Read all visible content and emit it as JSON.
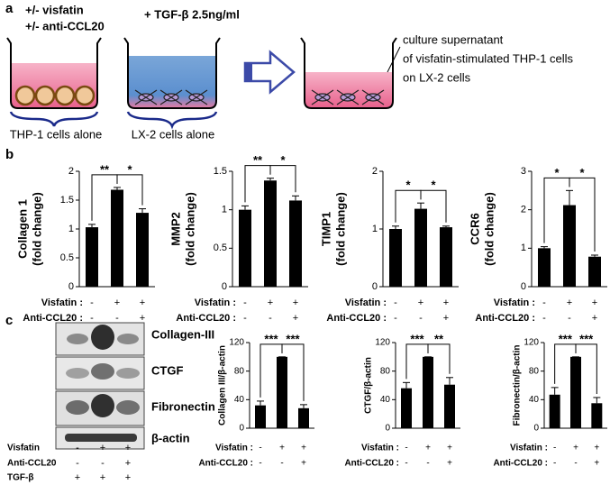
{
  "panel_labels": [
    "a",
    "b",
    "c"
  ],
  "panel_a": {
    "treatments": [
      "+/- visfatin",
      "+/- anti-CCL20"
    ],
    "tgf": "+ TGF-β 2.5ng/ml",
    "note": [
      "culture supernatant",
      "of visfatin-stimulated THP-1 cells",
      "on LX-2 cells"
    ],
    "wells": [
      "THP-1 cells alone",
      "LX-2 cells alone"
    ]
  },
  "blot": {
    "proteins": [
      "Collagen-III",
      "CTGF",
      "Fibronectin",
      "β-actin"
    ],
    "treatments": [
      {
        "label": "Visfatin",
        "signs": [
          "-",
          "+",
          "+"
        ]
      },
      {
        "label": "Anti-CCL20",
        "signs": [
          "-",
          "-",
          "+"
        ]
      },
      {
        "label": "TGF-β",
        "signs": [
          "+",
          "+",
          "+"
        ]
      }
    ]
  },
  "chart_data": [
    {
      "type": "bar",
      "ylabel": [
        "Collagen 1",
        "(fold change)"
      ],
      "values": [
        1.03,
        1.68,
        1.28
      ],
      "errors": [
        0.05,
        0.04,
        0.07
      ],
      "color": "#000000",
      "ylim": [
        0,
        2
      ],
      "yticks": [
        0,
        0.5,
        1,
        1.5,
        2
      ],
      "significance": [
        "**",
        "*"
      ],
      "treatments": [
        {
          "label": "Visfatin :",
          "signs": [
            "-",
            "+",
            "+"
          ]
        },
        {
          "label": "Anti-CCL20 :",
          "signs": [
            "-",
            "-",
            "+"
          ]
        }
      ]
    },
    {
      "type": "bar",
      "ylabel": [
        "MMP2",
        "(fold change)"
      ],
      "values": [
        1.0,
        1.38,
        1.12
      ],
      "errors": [
        0.05,
        0.03,
        0.06
      ],
      "color": "#000000",
      "ylim": [
        0,
        1.5
      ],
      "yticks": [
        0,
        0.5,
        1,
        1.5
      ],
      "significance": [
        "**",
        "*"
      ],
      "treatments": [
        {
          "label": "Visfatin :",
          "signs": [
            "-",
            "+",
            "+"
          ]
        },
        {
          "label": "Anti-CCL20 :",
          "signs": [
            "-",
            "-",
            "+"
          ]
        }
      ]
    },
    {
      "type": "bar",
      "ylabel": [
        "TIMP1",
        "(fold change)"
      ],
      "values": [
        1.0,
        1.35,
        1.03
      ],
      "errors": [
        0.05,
        0.1,
        0.02
      ],
      "color": "#000000",
      "ylim": [
        0,
        2
      ],
      "yticks": [
        0,
        1,
        2
      ],
      "significance": [
        "*",
        "*"
      ],
      "treatments": [
        {
          "label": "Visfatin :",
          "signs": [
            "-",
            "+",
            "+"
          ]
        },
        {
          "label": "Anti-CCL20 :",
          "signs": [
            "-",
            "-",
            "+"
          ]
        }
      ]
    },
    {
      "type": "bar",
      "ylabel": [
        "CCR6",
        "(fold change)"
      ],
      "values": [
        1.0,
        2.12,
        0.78
      ],
      "errors": [
        0.04,
        0.38,
        0.04
      ],
      "color": "#000000",
      "ylim": [
        0,
        3
      ],
      "yticks": [
        0,
        1,
        2,
        3
      ],
      "significance": [
        "*",
        "*"
      ],
      "treatments": [
        {
          "label": "Visfatin :",
          "signs": [
            "-",
            "+",
            "+"
          ]
        },
        {
          "label": "Anti-CCL20 :",
          "signs": [
            "-",
            "-",
            "+"
          ]
        }
      ]
    },
    {
      "type": "bar",
      "ylabel": [
        "Collagen III/β-actin"
      ],
      "values": [
        32,
        100,
        28
      ],
      "errors": [
        6,
        0,
        5
      ],
      "color": "#000000",
      "ylim": [
        0,
        120
      ],
      "yticks": [
        0,
        40,
        80,
        120
      ],
      "significance": [
        "***",
        "***"
      ],
      "treatments": [
        {
          "label": "Visfatin :",
          "signs": [
            "-",
            "+",
            "+"
          ]
        },
        {
          "label": "Anti-CCL20 :",
          "signs": [
            "-",
            "-",
            "+"
          ]
        }
      ]
    },
    {
      "type": "bar",
      "ylabel": [
        "CTGF/β-actin"
      ],
      "values": [
        56,
        100,
        61
      ],
      "errors": [
        8,
        0,
        10
      ],
      "color": "#000000",
      "ylim": [
        0,
        120
      ],
      "yticks": [
        0,
        40,
        80,
        120
      ],
      "significance": [
        "***",
        "**"
      ],
      "treatments": [
        {
          "label": "Visfatin :",
          "signs": [
            "-",
            "+",
            "+"
          ]
        },
        {
          "label": "Anti-CCL20 :",
          "signs": [
            "-",
            "-",
            "+"
          ]
        }
      ]
    },
    {
      "type": "bar",
      "ylabel": [
        "Fibronectin/β-actin"
      ],
      "values": [
        47,
        100,
        35
      ],
      "errors": [
        10,
        0,
        8
      ],
      "color": "#000000",
      "ylim": [
        0,
        120
      ],
      "yticks": [
        0,
        40,
        80,
        120
      ],
      "significance": [
        "***",
        "***"
      ],
      "treatments": [
        {
          "label": "Visfatin :",
          "signs": [
            "-",
            "+",
            "+"
          ]
        },
        {
          "label": "Anti-CCL20 :",
          "signs": [
            "-",
            "-",
            "+"
          ]
        }
      ]
    }
  ]
}
